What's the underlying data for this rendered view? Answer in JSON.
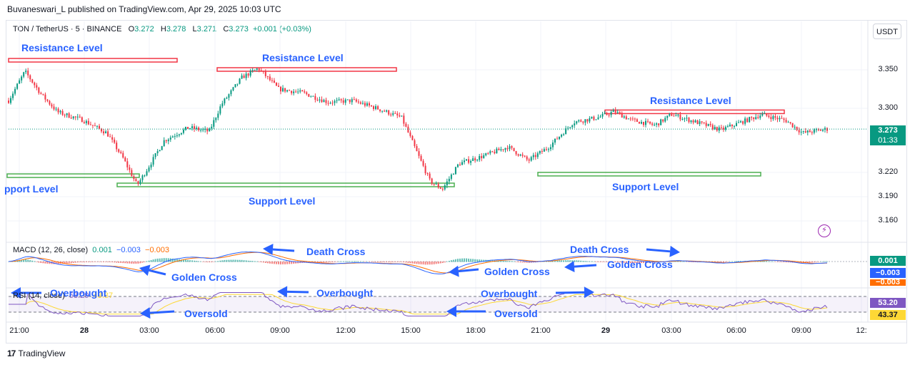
{
  "header": {
    "published_line": "Buvaneswari_L published on TradingView.com, Apr 29, 2025 10:03 UTC"
  },
  "symbol": {
    "name": "TON / TetherUS · 5 · BINANCE",
    "o_label": "O",
    "o_value": "3.272",
    "h_label": "H",
    "h_value": "3.278",
    "l_label": "L",
    "l_value": "3.271",
    "c_label": "C",
    "c_value": "3.273",
    "change": "+0.001 (+0.03%)"
  },
  "currency_button": "USDT",
  "price_axis": {
    "ticks": [
      "3.350",
      "3.300",
      "3.220",
      "3.190",
      "3.160"
    ],
    "last_price": "3.273",
    "countdown": "01:33"
  },
  "time_axis": {
    "ticks": [
      "21:00",
      "28",
      "03:00",
      "06:00",
      "09:00",
      "12:00",
      "15:00",
      "18:00",
      "21:00",
      "29",
      "03:00",
      "06:00",
      "09:00",
      "12:"
    ]
  },
  "macd": {
    "label": "MACD (12, 26, close)",
    "v1": "0.001",
    "v2": "−0.003",
    "v3": "−0.003",
    "badge_macd": "0.001",
    "badge_signal": "−0.003",
    "badge_hist": "−0.003"
  },
  "rsi": {
    "label": "RSI (14, close)",
    "value": "53.20",
    "ma_value": "43.37",
    "badge_rsi": "53.20",
    "badge_ma": "43.37"
  },
  "annotations": {
    "resistance": [
      "Resistance Level",
      "Resistance Level",
      "Resistance Level"
    ],
    "support": [
      "pport Level",
      "Support Level",
      "Support Level"
    ],
    "death_cross": [
      "Death Cross",
      "Death Cross"
    ],
    "golden_cross": [
      "Golden Cross",
      "Golden Cross",
      "Golden Cross"
    ],
    "overbought": [
      "Overbought",
      "Overbought",
      "Overbought"
    ],
    "oversold": [
      "Oversold",
      "Oversold"
    ]
  },
  "footer": {
    "logo": "17",
    "brand": "TradingView"
  },
  "colors": {
    "up": "#089981",
    "down": "#f23645",
    "resistance": "#f23645",
    "support": "#4caf50",
    "annotation": "#2962ff",
    "macd_line": "#2962ff",
    "signal_line": "#ff6d00",
    "rsi_line": "#7e57c2",
    "rsi_ma": "#fdd835"
  },
  "chart_data": {
    "type": "candlestick",
    "title": "TON / TetherUS · 5 · BINANCE",
    "xlabel": "",
    "ylabel": "",
    "ylim": [
      3.14,
      3.37
    ],
    "price_path": [
      {
        "t": 0.0,
        "p": 3.31
      },
      {
        "t": 0.02,
        "p": 3.348
      },
      {
        "t": 0.04,
        "p": 3.318
      },
      {
        "t": 0.06,
        "p": 3.295
      },
      {
        "t": 0.09,
        "p": 3.285
      },
      {
        "t": 0.12,
        "p": 3.268
      },
      {
        "t": 0.14,
        "p": 3.235
      },
      {
        "t": 0.157,
        "p": 3.2
      },
      {
        "t": 0.17,
        "p": 3.222
      },
      {
        "t": 0.19,
        "p": 3.258
      },
      {
        "t": 0.22,
        "p": 3.275
      },
      {
        "t": 0.245,
        "p": 3.27
      },
      {
        "t": 0.26,
        "p": 3.305
      },
      {
        "t": 0.285,
        "p": 3.34
      },
      {
        "t": 0.305,
        "p": 3.352
      },
      {
        "t": 0.33,
        "p": 3.325
      },
      {
        "t": 0.36,
        "p": 3.32
      },
      {
        "t": 0.39,
        "p": 3.308
      },
      {
        "t": 0.42,
        "p": 3.31
      },
      {
        "t": 0.45,
        "p": 3.3
      },
      {
        "t": 0.48,
        "p": 3.288
      },
      {
        "t": 0.5,
        "p": 3.24
      },
      {
        "t": 0.515,
        "p": 3.205
      },
      {
        "t": 0.53,
        "p": 3.195
      },
      {
        "t": 0.55,
        "p": 3.228
      },
      {
        "t": 0.58,
        "p": 3.238
      },
      {
        "t": 0.61,
        "p": 3.25
      },
      {
        "t": 0.635,
        "p": 3.232
      },
      {
        "t": 0.66,
        "p": 3.25
      },
      {
        "t": 0.69,
        "p": 3.282
      },
      {
        "t": 0.72,
        "p": 3.288
      },
      {
        "t": 0.74,
        "p": 3.296
      },
      {
        "t": 0.76,
        "p": 3.285
      },
      {
        "t": 0.79,
        "p": 3.278
      },
      {
        "t": 0.81,
        "p": 3.292
      },
      {
        "t": 0.84,
        "p": 3.282
      },
      {
        "t": 0.87,
        "p": 3.272
      },
      {
        "t": 0.9,
        "p": 3.284
      },
      {
        "t": 0.92,
        "p": 3.292
      },
      {
        "t": 0.95,
        "p": 3.284
      },
      {
        "t": 0.97,
        "p": 3.268
      },
      {
        "t": 1.0,
        "p": 3.273
      }
    ],
    "resistance_levels": [
      3.362,
      3.35,
      3.295
    ],
    "support_levels": [
      3.212,
      3.2,
      3.214
    ],
    "last_price": 3.273
  }
}
